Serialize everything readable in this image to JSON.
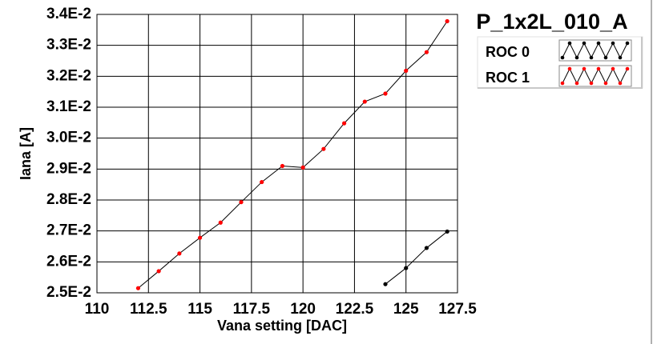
{
  "chart_data": {
    "type": "line",
    "title": "P_1x2L_010_A",
    "xlabel": "Vana setting [DAC]",
    "ylabel": "Iana [A]",
    "xlim": [
      110,
      127.5
    ],
    "ylim": [
      0.025,
      0.034
    ],
    "x_ticks": [
      110,
      112.5,
      115,
      117.5,
      120,
      122.5,
      125,
      127.5
    ],
    "x_tick_labels": [
      "110",
      "112.5",
      "115",
      "117.5",
      "120",
      "122.5",
      "125",
      "127.5"
    ],
    "y_ticks": [
      0.025,
      0.026,
      0.027,
      0.028,
      0.029,
      0.03,
      0.031,
      0.032,
      0.033,
      0.034
    ],
    "y_tick_labels": [
      "2.5E-2",
      "2.6E-2",
      "2.7E-2",
      "2.8E-2",
      "2.9E-2",
      "3.0E-2",
      "3.1E-2",
      "3.2E-2",
      "3.3E-2",
      "3.4E-2"
    ],
    "grid": true,
    "legend_position": "top-right",
    "series": [
      {
        "name": "ROC 0",
        "color": "#000000",
        "x": [
          124,
          125,
          126,
          127
        ],
        "y": [
          0.02528,
          0.0258,
          0.02645,
          0.02698
        ]
      },
      {
        "name": "ROC 1",
        "color": "#ff0000",
        "x": [
          112,
          113,
          114,
          115,
          116,
          117,
          118,
          119,
          120,
          121,
          122,
          123,
          124,
          125,
          126,
          127
        ],
        "y": [
          0.02515,
          0.0257,
          0.02627,
          0.02678,
          0.02727,
          0.02793,
          0.02858,
          0.0291,
          0.02905,
          0.02965,
          0.03048,
          0.03118,
          0.03144,
          0.03218,
          0.03278,
          0.03378
        ]
      }
    ]
  }
}
